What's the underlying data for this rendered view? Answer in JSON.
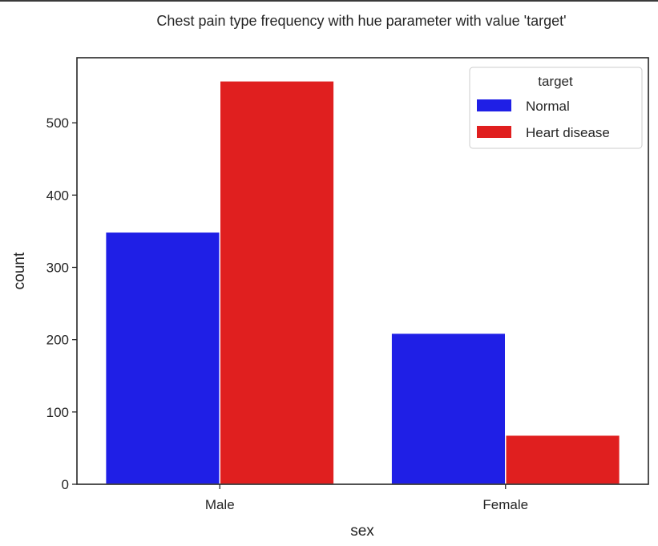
{
  "chart_data": {
    "type": "bar",
    "title": "Chest pain type frequency with hue parameter with value 'target'",
    "xlabel": "sex",
    "ylabel": "count",
    "categories": [
      "Male",
      "Female"
    ],
    "series": [
      {
        "name": "Normal",
        "color": "#1f1fe6",
        "values": [
          349,
          209
        ]
      },
      {
        "name": "Heart disease",
        "color": "#e01f1f",
        "values": [
          558,
          68
        ]
      }
    ],
    "ylim": [
      0,
      590
    ],
    "yticks": [
      0,
      100,
      200,
      300,
      400,
      500
    ],
    "legend": {
      "title": "target",
      "position": "top-right"
    },
    "grid": false
  }
}
